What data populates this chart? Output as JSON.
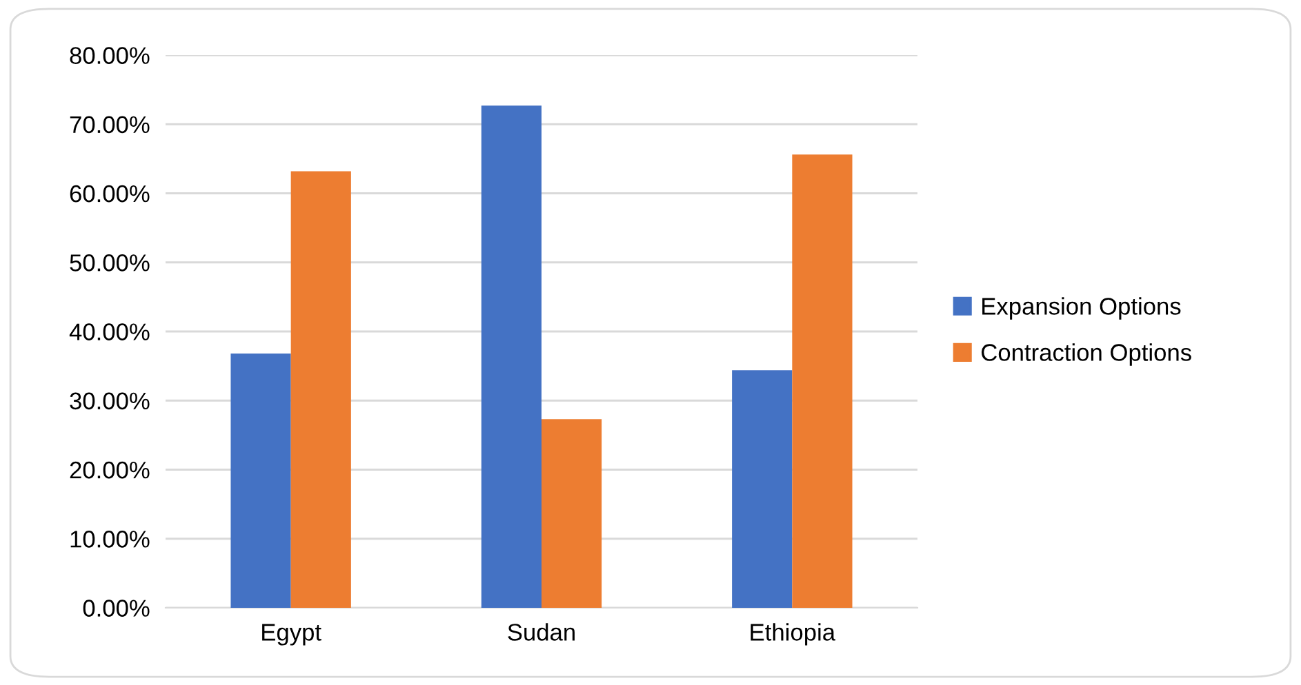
{
  "chart_data": {
    "type": "bar",
    "categories": [
      "Egypt",
      "Sudan",
      "Ethiopia"
    ],
    "series": [
      {
        "name": "Expansion Options",
        "color": "#4472c4",
        "values": [
          36.8,
          72.7,
          34.4
        ]
      },
      {
        "name": "Contraction Options",
        "color": "#ed7d31",
        "values": [
          63.2,
          27.3,
          65.6
        ]
      }
    ],
    "ylim": [
      0,
      80
    ],
    "yticks": [
      {
        "value": 0,
        "label": "0.00%"
      },
      {
        "value": 10,
        "label": "10.00%"
      },
      {
        "value": 20,
        "label": "20.00%"
      },
      {
        "value": 30,
        "label": "30.00%"
      },
      {
        "value": 40,
        "label": "40.00%"
      },
      {
        "value": 50,
        "label": "50.00%"
      },
      {
        "value": 60,
        "label": "60.00%"
      },
      {
        "value": 70,
        "label": "70.00%"
      },
      {
        "value": 80,
        "label": "80.00%"
      }
    ],
    "grid": "y",
    "legend": "right"
  }
}
